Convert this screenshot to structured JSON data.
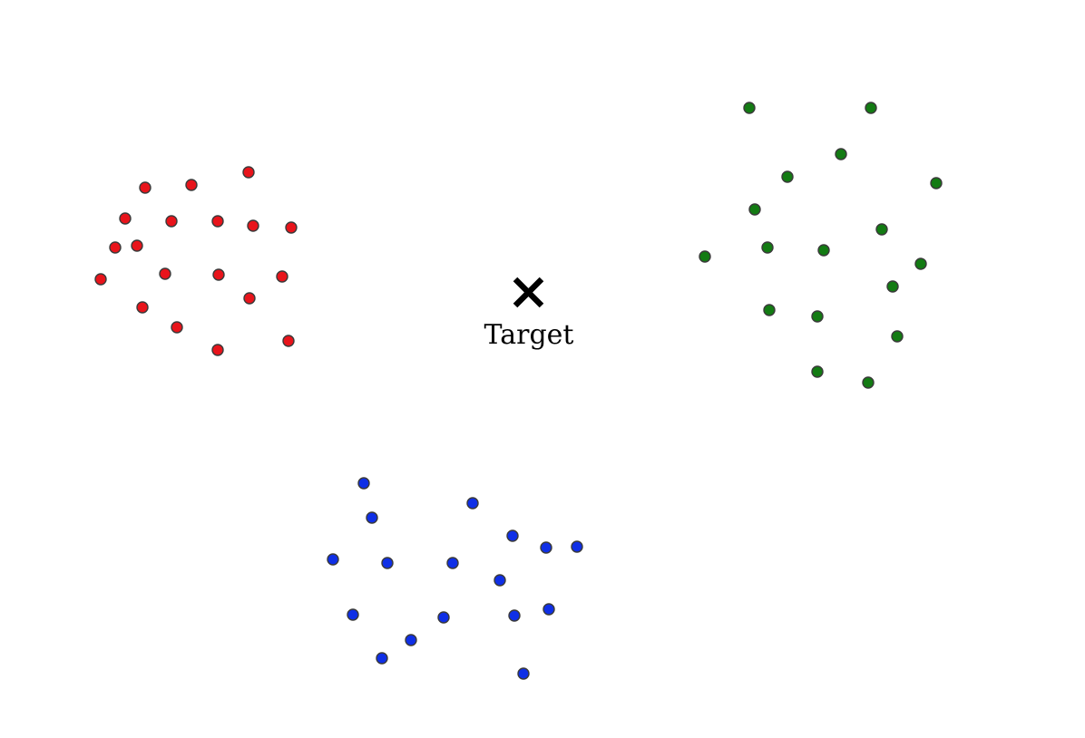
{
  "colors": {
    "red_cluster": "#e8141b",
    "green_cluster": "#137b13",
    "blue_cluster": "#0f2fe6",
    "point_outline": "#3a3a3a",
    "target_marker": "#000000",
    "background": "#ffffff"
  },
  "target": {
    "icon": "x-mark-icon",
    "label": "Target"
  }
}
